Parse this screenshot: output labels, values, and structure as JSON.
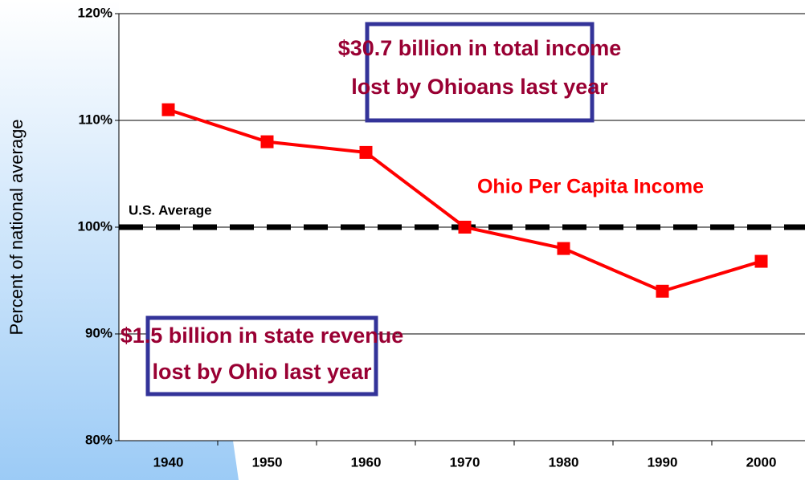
{
  "chart_data": {
    "type": "line",
    "y_label": "Percent of national average",
    "categories": [
      "1940",
      "1950",
      "1960",
      "1970",
      "1980",
      "1990",
      "2000"
    ],
    "series": [
      {
        "name": "Ohio Per Capita Income",
        "color": "#ff0000",
        "values": [
          111,
          108,
          107,
          100,
          98,
          94,
          96.8
        ]
      }
    ],
    "ylim": [
      80,
      120
    ],
    "yticks": [
      {
        "value": 80,
        "label": "80%"
      },
      {
        "value": 90,
        "label": "90%"
      },
      {
        "value": 100,
        "label": "100%"
      },
      {
        "value": 110,
        "label": "110%"
      },
      {
        "value": 120,
        "label": "120%"
      }
    ],
    "grid": true,
    "reference_line": {
      "value": 100,
      "label": "U.S. Average",
      "color": "#000000"
    },
    "annotations": [
      {
        "lines": [
          "$30.7 billion in total income",
          "lost by Ohioans last year"
        ]
      },
      {
        "lines": [
          "$1.5 billion in state revenue",
          "lost by Ohio last year"
        ]
      }
    ]
  }
}
